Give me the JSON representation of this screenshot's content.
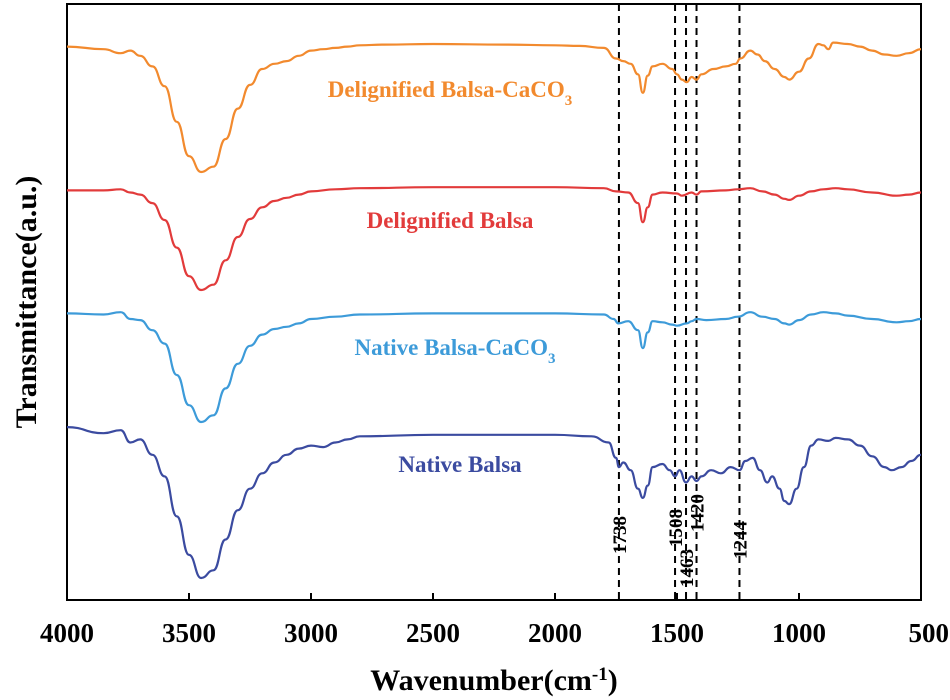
{
  "chart_data": {
    "type": "line",
    "xlabel": "Wavenumber(cm",
    "xlabel_sup": "-1",
    "xlabel_close": ")",
    "ylabel": "Transmittance(a.u.)",
    "xlim": [
      4000,
      500
    ],
    "x_reversed": true,
    "xticks": [
      4000,
      3500,
      3000,
      2500,
      2000,
      1500,
      1000,
      500
    ],
    "xtick_labels": [
      "4000",
      "3500",
      "3000",
      "2500",
      "2000",
      "1500",
      "1000",
      "500"
    ],
    "y_ticks_shown": false,
    "grid": false,
    "peak_lines": [
      {
        "x": 1738,
        "label": "1738"
      },
      {
        "x": 1508,
        "label": "1508"
      },
      {
        "x": 1463,
        "label": "1463"
      },
      {
        "x": 1420,
        "label": "1420"
      },
      {
        "x": 1244,
        "label": "1244"
      }
    ],
    "series": [
      {
        "label_text": "Delignified Balsa-CaCO",
        "label_sub": "3",
        "color": "#F28A2E",
        "points": [
          [
            4000,
            0.95
          ],
          [
            3850,
            0.93
          ],
          [
            3780,
            0.9
          ],
          [
            3740,
            0.92
          ],
          [
            3700,
            0.88
          ],
          [
            3650,
            0.8
          ],
          [
            3600,
            0.65
          ],
          [
            3550,
            0.38
          ],
          [
            3500,
            0.12
          ],
          [
            3450,
            0.0
          ],
          [
            3400,
            0.04
          ],
          [
            3350,
            0.25
          ],
          [
            3300,
            0.48
          ],
          [
            3250,
            0.66
          ],
          [
            3200,
            0.78
          ],
          [
            3150,
            0.82
          ],
          [
            3100,
            0.84
          ],
          [
            3050,
            0.88
          ],
          [
            3000,
            0.92
          ],
          [
            2950,
            0.93
          ],
          [
            2900,
            0.94
          ],
          [
            2850,
            0.95
          ],
          [
            2800,
            0.96
          ],
          [
            2700,
            0.965
          ],
          [
            2500,
            0.97
          ],
          [
            2200,
            0.965
          ],
          [
            2000,
            0.96
          ],
          [
            1900,
            0.955
          ],
          [
            1800,
            0.94
          ],
          [
            1750,
            0.86
          ],
          [
            1720,
            0.84
          ],
          [
            1690,
            0.82
          ],
          [
            1660,
            0.74
          ],
          [
            1640,
            0.6
          ],
          [
            1620,
            0.73
          ],
          [
            1600,
            0.8
          ],
          [
            1560,
            0.82
          ],
          [
            1520,
            0.78
          ],
          [
            1500,
            0.74
          ],
          [
            1480,
            0.7
          ],
          [
            1460,
            0.68
          ],
          [
            1440,
            0.72
          ],
          [
            1420,
            0.7
          ],
          [
            1400,
            0.74
          ],
          [
            1350,
            0.78
          ],
          [
            1300,
            0.8
          ],
          [
            1260,
            0.82
          ],
          [
            1240,
            0.86
          ],
          [
            1200,
            0.92
          ],
          [
            1170,
            0.89
          ],
          [
            1140,
            0.84
          ],
          [
            1100,
            0.78
          ],
          [
            1060,
            0.72
          ],
          [
            1040,
            0.7
          ],
          [
            1000,
            0.76
          ],
          [
            960,
            0.86
          ],
          [
            920,
            0.97
          ],
          [
            900,
            0.96
          ],
          [
            880,
            0.93
          ],
          [
            860,
            0.98
          ],
          [
            800,
            0.97
          ],
          [
            750,
            0.95
          ],
          [
            700,
            0.92
          ],
          [
            650,
            0.89
          ],
          [
            600,
            0.88
          ],
          [
            550,
            0.9
          ],
          [
            500,
            0.93
          ]
        ]
      },
      {
        "label_text": "Delignified Balsa",
        "label_sub": "",
        "color": "#E23B3B",
        "points": [
          [
            4000,
            0.94
          ],
          [
            3850,
            0.94
          ],
          [
            3780,
            0.95
          ],
          [
            3740,
            0.92
          ],
          [
            3700,
            0.9
          ],
          [
            3650,
            0.82
          ],
          [
            3600,
            0.66
          ],
          [
            3550,
            0.4
          ],
          [
            3500,
            0.13
          ],
          [
            3450,
            0.0
          ],
          [
            3400,
            0.05
          ],
          [
            3350,
            0.28
          ],
          [
            3300,
            0.5
          ],
          [
            3250,
            0.67
          ],
          [
            3200,
            0.78
          ],
          [
            3150,
            0.84
          ],
          [
            3100,
            0.87
          ],
          [
            3050,
            0.9
          ],
          [
            3000,
            0.93
          ],
          [
            2900,
            0.95
          ],
          [
            2800,
            0.96
          ],
          [
            2500,
            0.97
          ],
          [
            2000,
            0.97
          ],
          [
            1800,
            0.96
          ],
          [
            1750,
            0.93
          ],
          [
            1700,
            0.92
          ],
          [
            1660,
            0.82
          ],
          [
            1640,
            0.64
          ],
          [
            1620,
            0.78
          ],
          [
            1600,
            0.9
          ],
          [
            1560,
            0.92
          ],
          [
            1500,
            0.91
          ],
          [
            1480,
            0.89
          ],
          [
            1440,
            0.92
          ],
          [
            1420,
            0.9
          ],
          [
            1400,
            0.93
          ],
          [
            1300,
            0.94
          ],
          [
            1250,
            0.95
          ],
          [
            1200,
            0.96
          ],
          [
            1150,
            0.93
          ],
          [
            1100,
            0.9
          ],
          [
            1060,
            0.86
          ],
          [
            1040,
            0.85
          ],
          [
            1000,
            0.89
          ],
          [
            950,
            0.93
          ],
          [
            900,
            0.95
          ],
          [
            850,
            0.96
          ],
          [
            800,
            0.95
          ],
          [
            700,
            0.92
          ],
          [
            600,
            0.89
          ],
          [
            550,
            0.9
          ],
          [
            500,
            0.92
          ]
        ]
      },
      {
        "label_text": "Native Balsa-CaCO",
        "label_sub": "3",
        "color": "#3D9BD9",
        "points": [
          [
            4000,
            0.97
          ],
          [
            3850,
            0.96
          ],
          [
            3780,
            0.98
          ],
          [
            3740,
            0.92
          ],
          [
            3700,
            0.91
          ],
          [
            3650,
            0.82
          ],
          [
            3600,
            0.7
          ],
          [
            3550,
            0.42
          ],
          [
            3500,
            0.15
          ],
          [
            3450,
            0.0
          ],
          [
            3400,
            0.06
          ],
          [
            3350,
            0.3
          ],
          [
            3300,
            0.52
          ],
          [
            3250,
            0.68
          ],
          [
            3200,
            0.78
          ],
          [
            3150,
            0.83
          ],
          [
            3100,
            0.85
          ],
          [
            3050,
            0.88
          ],
          [
            3000,
            0.92
          ],
          [
            2900,
            0.94
          ],
          [
            2800,
            0.96
          ],
          [
            2500,
            0.97
          ],
          [
            2000,
            0.97
          ],
          [
            1800,
            0.96
          ],
          [
            1760,
            0.92
          ],
          [
            1740,
            0.88
          ],
          [
            1700,
            0.9
          ],
          [
            1660,
            0.82
          ],
          [
            1640,
            0.66
          ],
          [
            1620,
            0.8
          ],
          [
            1600,
            0.9
          ],
          [
            1560,
            0.89
          ],
          [
            1520,
            0.87
          ],
          [
            1500,
            0.86
          ],
          [
            1460,
            0.88
          ],
          [
            1440,
            0.9
          ],
          [
            1420,
            0.92
          ],
          [
            1380,
            0.91
          ],
          [
            1300,
            0.92
          ],
          [
            1250,
            0.94
          ],
          [
            1200,
            0.98
          ],
          [
            1150,
            0.94
          ],
          [
            1100,
            0.92
          ],
          [
            1060,
            0.88
          ],
          [
            1040,
            0.87
          ],
          [
            1000,
            0.91
          ],
          [
            950,
            0.96
          ],
          [
            900,
            0.98
          ],
          [
            850,
            0.97
          ],
          [
            800,
            0.95
          ],
          [
            700,
            0.92
          ],
          [
            600,
            0.89
          ],
          [
            550,
            0.9
          ],
          [
            500,
            0.92
          ]
        ]
      },
      {
        "label_text": "Native Balsa",
        "label_sub": "",
        "color": "#3B4BA0",
        "points": [
          [
            4000,
            0.98
          ],
          [
            3850,
            0.94
          ],
          [
            3780,
            0.96
          ],
          [
            3740,
            0.88
          ],
          [
            3700,
            0.9
          ],
          [
            3650,
            0.8
          ],
          [
            3600,
            0.66
          ],
          [
            3550,
            0.4
          ],
          [
            3500,
            0.15
          ],
          [
            3450,
            0.0
          ],
          [
            3400,
            0.05
          ],
          [
            3350,
            0.25
          ],
          [
            3300,
            0.44
          ],
          [
            3250,
            0.58
          ],
          [
            3200,
            0.68
          ],
          [
            3150,
            0.75
          ],
          [
            3100,
            0.8
          ],
          [
            3050,
            0.84
          ],
          [
            3000,
            0.86
          ],
          [
            2950,
            0.85
          ],
          [
            2900,
            0.88
          ],
          [
            2850,
            0.9
          ],
          [
            2800,
            0.92
          ],
          [
            2500,
            0.93
          ],
          [
            2200,
            0.93
          ],
          [
            2000,
            0.93
          ],
          [
            1850,
            0.92
          ],
          [
            1780,
            0.88
          ],
          [
            1750,
            0.78
          ],
          [
            1738,
            0.72
          ],
          [
            1720,
            0.75
          ],
          [
            1690,
            0.7
          ],
          [
            1660,
            0.58
          ],
          [
            1640,
            0.52
          ],
          [
            1620,
            0.6
          ],
          [
            1600,
            0.72
          ],
          [
            1560,
            0.74
          ],
          [
            1530,
            0.7
          ],
          [
            1508,
            0.66
          ],
          [
            1490,
            0.7
          ],
          [
            1463,
            0.62
          ],
          [
            1440,
            0.66
          ],
          [
            1420,
            0.63
          ],
          [
            1400,
            0.66
          ],
          [
            1360,
            0.7
          ],
          [
            1320,
            0.68
          ],
          [
            1280,
            0.72
          ],
          [
            1244,
            0.7
          ],
          [
            1220,
            0.76
          ],
          [
            1190,
            0.78
          ],
          [
            1160,
            0.7
          ],
          [
            1130,
            0.62
          ],
          [
            1110,
            0.66
          ],
          [
            1080,
            0.58
          ],
          [
            1060,
            0.5
          ],
          [
            1040,
            0.48
          ],
          [
            1010,
            0.58
          ],
          [
            980,
            0.72
          ],
          [
            950,
            0.86
          ],
          [
            920,
            0.9
          ],
          [
            880,
            0.89
          ],
          [
            850,
            0.91
          ],
          [
            800,
            0.9
          ],
          [
            750,
            0.86
          ],
          [
            700,
            0.79
          ],
          [
            650,
            0.72
          ],
          [
            620,
            0.7
          ],
          [
            580,
            0.72
          ],
          [
            540,
            0.76
          ],
          [
            500,
            0.8
          ]
        ]
      }
    ]
  }
}
